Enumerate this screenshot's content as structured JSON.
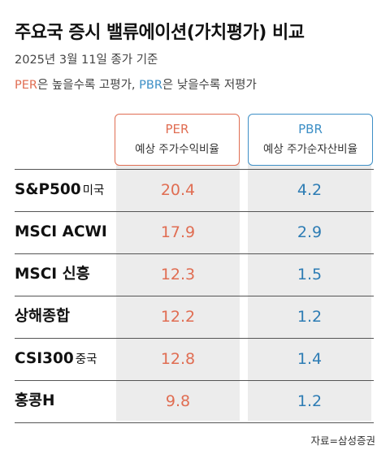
{
  "title": "주요국 증시 밸류에이션(가치평가) 비교",
  "subtitle": "2025년 3월 11일 종가 기준",
  "note": {
    "per_word": "PER",
    "per_text": "은 높을수록 고평가, ",
    "pbr_word": "PBR",
    "pbr_text": "은 낮을수록 저평가"
  },
  "colors": {
    "per": "#e06d52",
    "pbr": "#3d8fc6"
  },
  "chart_data": {
    "type": "table",
    "columns": [
      {
        "key": "per",
        "name": "PER",
        "desc": "예상 주가수익비율"
      },
      {
        "key": "pbr",
        "name": "PBR",
        "desc": "예상 주가순자산비율"
      }
    ],
    "rows": [
      {
        "label": "S&P500",
        "suffix": "미국",
        "per": "20.4",
        "pbr": "4.2"
      },
      {
        "label": "MSCI ACWI",
        "suffix": "",
        "per": "17.9",
        "pbr": "2.9"
      },
      {
        "label": "MSCI 신흥",
        "suffix": "",
        "per": "12.3",
        "pbr": "1.5"
      },
      {
        "label": "상해종합",
        "suffix": "",
        "per": "12.2",
        "pbr": "1.2"
      },
      {
        "label": "CSI300",
        "suffix": "중국",
        "per": "12.8",
        "pbr": "1.4"
      },
      {
        "label": "홍콩H",
        "suffix": "",
        "per": "9.8",
        "pbr": "1.2"
      }
    ]
  },
  "source": "자료=삼성증권"
}
